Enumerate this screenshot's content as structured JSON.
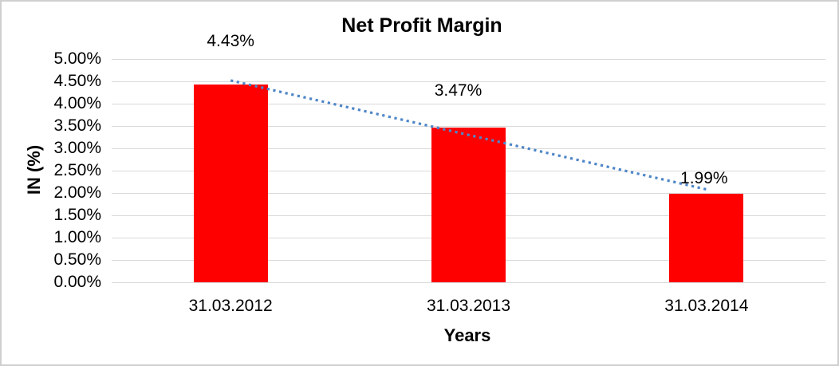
{
  "chart_data": {
    "type": "bar",
    "title": "Net Profit Margin",
    "xlabel": "Years",
    "ylabel": "IN (%)",
    "categories": [
      "31.03.2012",
      "31.03.2013",
      "31.03.2014"
    ],
    "values": [
      4.43,
      3.47,
      1.99
    ],
    "data_labels": [
      "4.43%",
      "3.47%",
      "1.99%"
    ],
    "ylim": [
      0,
      5
    ],
    "ytick_step": 0.5,
    "yticks_top_down": [
      "5.00%",
      "4.50%",
      "4.00%",
      "3.50%",
      "3.00%",
      "2.50%",
      "2.00%",
      "1.50%",
      "1.00%",
      "0.50%",
      "0.00%"
    ],
    "grid": true,
    "legend": "none",
    "bar_color": "#ff0000",
    "gridline_color": "#d9d9d9",
    "trendline": {
      "type": "linear",
      "style": "dotted",
      "color": "#4e86c8",
      "start_value": 4.52,
      "end_value": 2.08
    }
  }
}
